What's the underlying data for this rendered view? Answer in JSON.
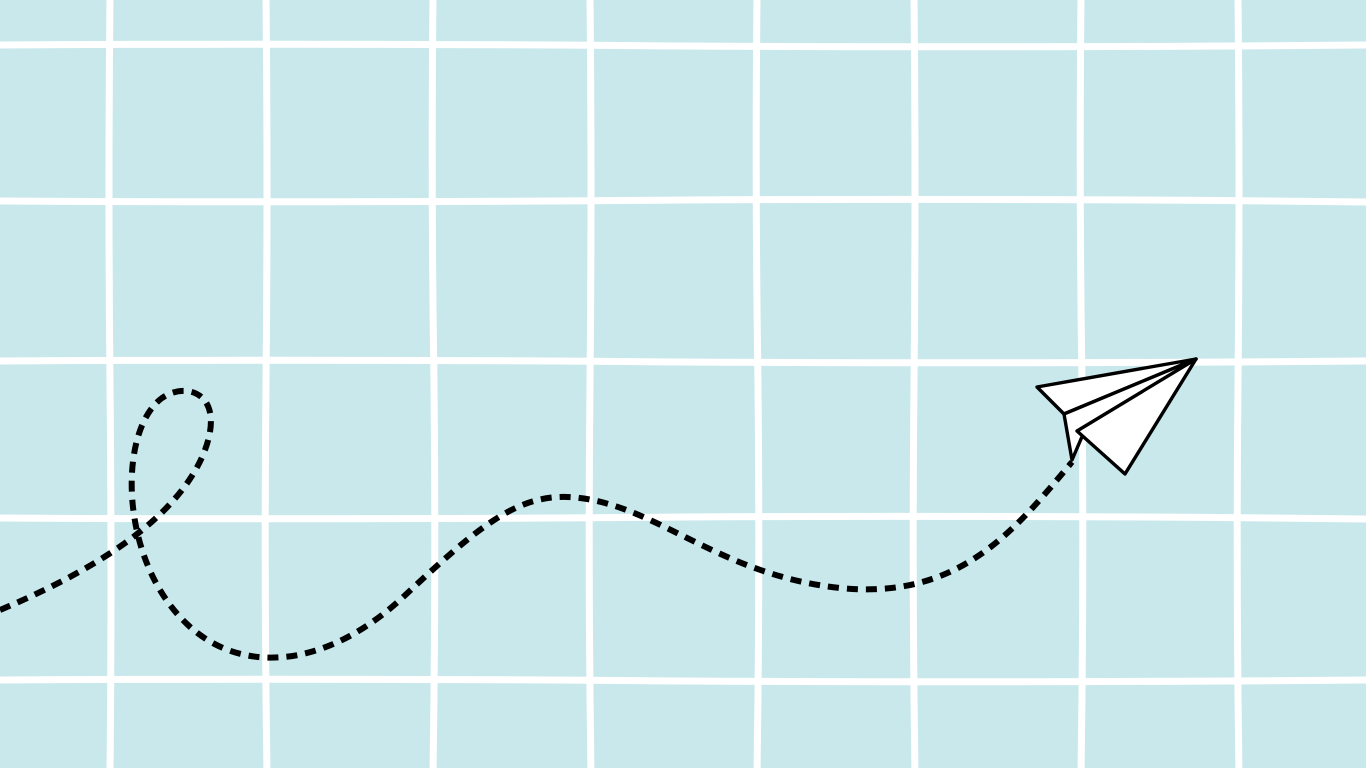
{
  "scene": {
    "background_color": "#c8e8ec",
    "grid_line_color": "#ffffff",
    "trail_color": "#000000",
    "plane_fill_color": "#ffffff",
    "plane_outline_color": "#000000",
    "elements": [
      "tiled-grid-background",
      "dashed-flight-trail",
      "paper-airplane-icon"
    ]
  }
}
